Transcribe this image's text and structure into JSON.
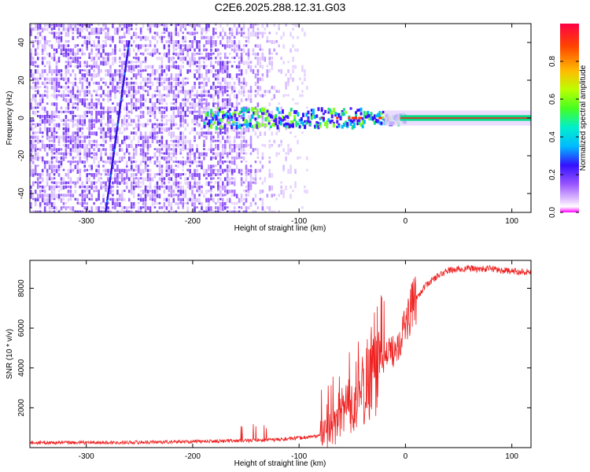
{
  "title": "C2E6.2025.288.12.31.G03",
  "chart_data": [
    {
      "type": "heatmap",
      "xlabel": "Height of straight line (km)",
      "ylabel": "Frequency (Hz)",
      "xlim": [
        -353,
        118
      ],
      "ylim": [
        -50,
        50
      ],
      "x_ticks": [
        -300,
        -200,
        -100,
        0,
        100
      ],
      "y_ticks": [
        -40,
        -20,
        0,
        20,
        40
      ],
      "colorbar": {
        "label": "Normalized spectral amplitude",
        "range": [
          0,
          1
        ],
        "ticks": [
          "0.0",
          "0.2",
          "0.4",
          "0.6",
          "0.8"
        ],
        "tick_values": [
          0.0,
          0.2,
          0.4,
          0.6,
          0.8
        ]
      },
      "features": [
        {
          "name": "noise-field",
          "x_range": [
            -353,
            -100
          ],
          "freq_range": [
            -50,
            50
          ]
        },
        {
          "name": "diagonal-streak",
          "x_range": [
            -282,
            -260
          ],
          "freq_range": [
            -50,
            40
          ]
        },
        {
          "name": "carrier-line",
          "x_range": [
            -190,
            118
          ],
          "freq_hz": 0
        }
      ]
    },
    {
      "type": "line",
      "xlabel": "Height of straight line (km)",
      "ylabel": "SNR (10 * v/v)",
      "xlim": [
        -353,
        118
      ],
      "ylim": [
        0,
        9400
      ],
      "x_ticks": [
        -300,
        -200,
        -100,
        0,
        100
      ],
      "y_ticks": [
        2000,
        4000,
        6000,
        8000
      ],
      "series": [
        {
          "name": "SNR",
          "color": "#ee2222",
          "x": [
            -353,
            -300,
            -250,
            -200,
            -150,
            -120,
            -100,
            -80,
            -70,
            -60,
            -50,
            -45,
            -40,
            -35,
            -30,
            -25,
            -20,
            -15,
            -10,
            -5,
            0,
            5,
            10,
            20,
            30,
            40,
            50,
            60,
            70,
            80,
            90,
            100,
            110,
            118
          ],
          "y": [
            250,
            250,
            270,
            300,
            350,
            400,
            480,
            600,
            900,
            1600,
            2000,
            2500,
            3000,
            3600,
            4300,
            4500,
            4600,
            4700,
            5000,
            5500,
            6200,
            6900,
            7500,
            8200,
            8600,
            8900,
            8950,
            9000,
            8950,
            9000,
            8900,
            8850,
            8850,
            8800
          ]
        }
      ]
    }
  ]
}
